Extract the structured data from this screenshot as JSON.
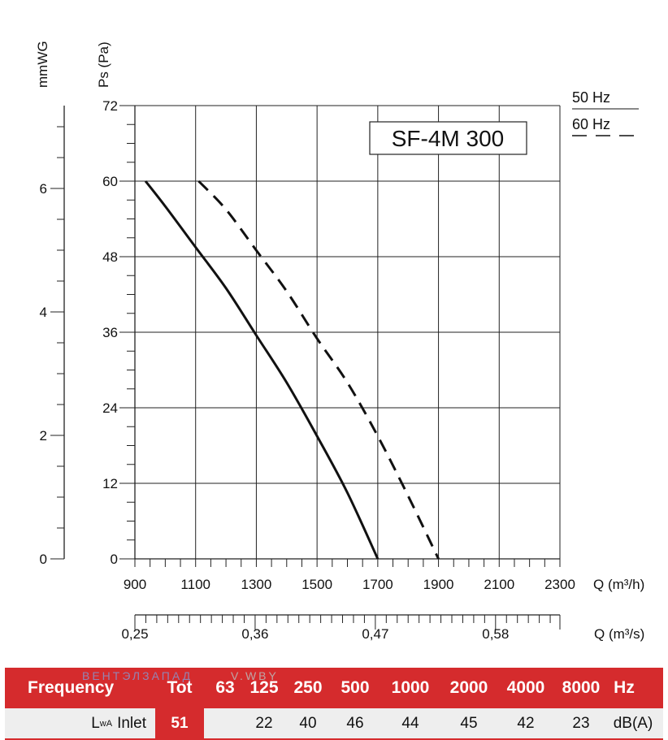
{
  "chart_data": {
    "type": "line",
    "title": "SF-4M 300",
    "x_label_top": "Q (m³/h)",
    "x_label_bottom": "Q (m³/s)",
    "y_label_left": "mmWG",
    "y_label_right": "Ps (Pa)",
    "xlim": [
      900,
      2300
    ],
    "ylim": [
      0,
      72
    ],
    "x_ticks": [
      "900",
      "1100",
      "1300",
      "1500",
      "1700",
      "1900",
      "2100",
      "2300"
    ],
    "y_ticks": [
      "0",
      "12",
      "24",
      "36",
      "48",
      "60",
      "72"
    ],
    "mmwg_ticks": [
      "0",
      "2",
      "4",
      "6"
    ],
    "ms_ticks": [
      {
        "label": "0,25",
        "q": 0.25
      },
      {
        "label": "0,36",
        "q": 0.36
      },
      {
        "label": "0,47",
        "q": 0.47
      },
      {
        "label": "0,58",
        "q": 0.58
      }
    ],
    "legend": [
      {
        "label": "50 Hz",
        "style": "solid"
      },
      {
        "label": "60 Hz",
        "style": "dashed"
      }
    ],
    "series": [
      {
        "name": "50 Hz",
        "style": "solid",
        "x": [
          935,
          1000,
          1100,
          1200,
          1300,
          1400,
          1500,
          1600,
          1700
        ],
        "y": [
          60,
          56,
          49.5,
          43,
          35.5,
          28,
          19.5,
          10.5,
          0
        ]
      },
      {
        "name": "60 Hz",
        "style": "dashed",
        "x": [
          1110,
          1200,
          1300,
          1400,
          1500,
          1600,
          1700,
          1800,
          1900
        ],
        "y": [
          60,
          55.5,
          49,
          42.5,
          35,
          28,
          19.5,
          10,
          0
        ]
      }
    ]
  },
  "table": {
    "watermark": "ВЕНТЭЛЗАПАД",
    "watermark_domain": "V.WBY",
    "header": [
      "Frequency",
      "Tot",
      "63",
      "125",
      "250",
      "500",
      "1000",
      "2000",
      "4000",
      "8000",
      "Hz"
    ],
    "row_label_main": "L",
    "row_label_sub": "wA",
    "row_label_rest": "Inlet",
    "row_values": [
      "51",
      "",
      "22",
      "40",
      "46",
      "44",
      "45",
      "42",
      "23",
      "dB(A)"
    ]
  }
}
